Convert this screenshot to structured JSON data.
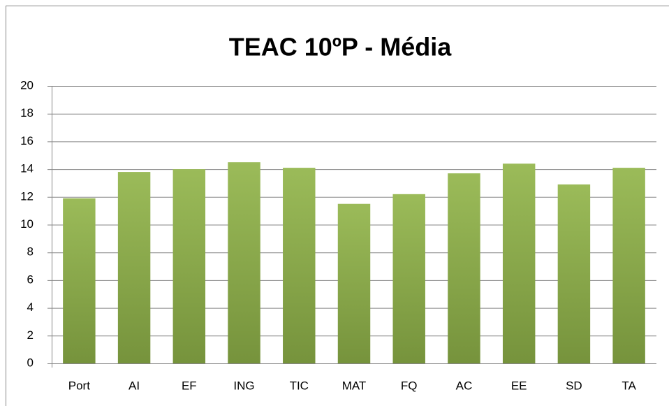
{
  "chart_data": {
    "type": "bar",
    "title": "TEAC 10ºP - Média",
    "categories": [
      "Port",
      "AI",
      "EF",
      "ING",
      "TIC",
      "MAT",
      "FQ",
      "AC",
      "EE",
      "SD",
      "TA"
    ],
    "values": [
      11.9,
      13.8,
      14.0,
      14.5,
      14.1,
      11.5,
      12.2,
      13.7,
      14.4,
      12.9,
      14.1
    ],
    "color": "#9bbb59",
    "ylim": [
      0,
      20
    ],
    "yticks": [
      0,
      2,
      4,
      6,
      8,
      10,
      12,
      14,
      16,
      18,
      20
    ],
    "grid": true
  }
}
